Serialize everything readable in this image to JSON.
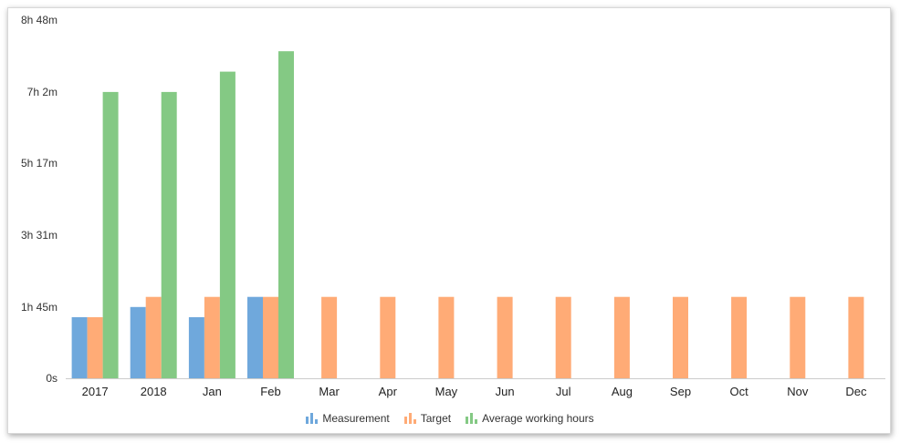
{
  "chart_data": {
    "type": "bar",
    "categories": [
      "2017",
      "2018",
      "Jan",
      "Feb",
      "Mar",
      "Apr",
      "May",
      "Jun",
      "Jul",
      "Aug",
      "Sep",
      "Oct",
      "Nov",
      "Dec"
    ],
    "y_unit": "minutes",
    "ylim": [
      0,
      528
    ],
    "yticks": [
      {
        "value": 0,
        "label": "0s"
      },
      {
        "value": 105,
        "label": "1h 45m"
      },
      {
        "value": 211,
        "label": "3h 31m"
      },
      {
        "value": 317,
        "label": "5h 17m"
      },
      {
        "value": 422,
        "label": "7h 2m"
      },
      {
        "value": 528,
        "label": "8h 48m"
      }
    ],
    "grid": false,
    "legend_position": "bottom-center",
    "series": [
      {
        "name": "Measurement",
        "color": "#6fa8dc",
        "values": [
          90,
          105,
          90,
          120,
          null,
          null,
          null,
          null,
          null,
          null,
          null,
          null,
          null,
          null
        ]
      },
      {
        "name": "Target",
        "color": "#ffab76",
        "values": [
          90,
          120,
          120,
          120,
          120,
          120,
          120,
          120,
          120,
          120,
          120,
          120,
          120,
          120
        ]
      },
      {
        "name": "Average working hours",
        "color": "#84c984",
        "values": [
          422,
          422,
          452,
          482,
          null,
          null,
          null,
          null,
          null,
          null,
          null,
          null,
          null,
          null
        ]
      }
    ]
  }
}
